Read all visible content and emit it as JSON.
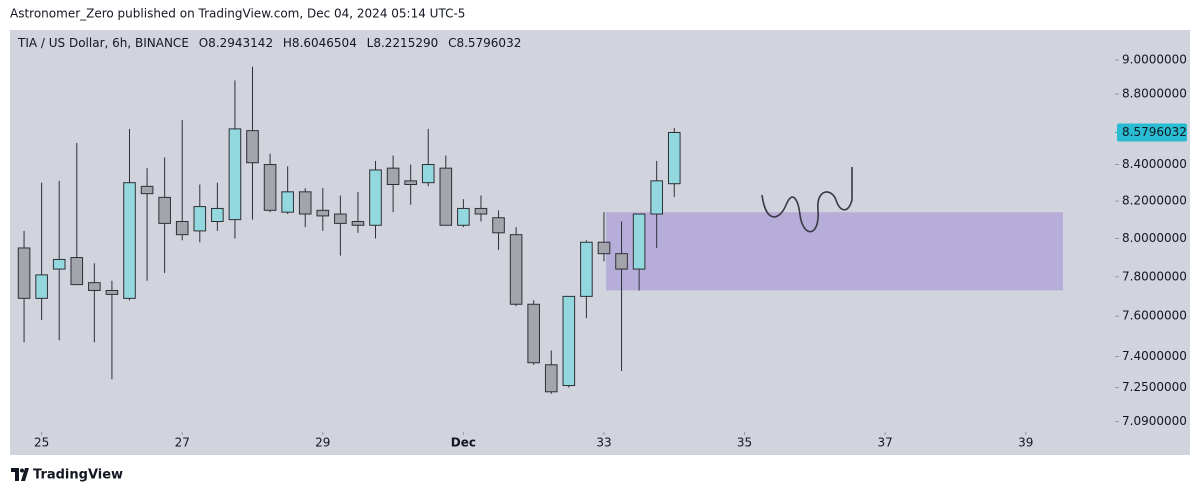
{
  "header": {
    "text": "Astronomer_Zero published on TradingView.com, Dec 04, 2024 05:14 UTC-5"
  },
  "footer": {
    "brand": "TradingView"
  },
  "chart_data": {
    "type": "candlestick",
    "symbol": "TIA / US Dollar, 6h, BINANCE",
    "ohlc_legend": [
      "O8.2943142",
      "H8.6046504",
      "L8.2215290",
      "C8.5796032"
    ],
    "x": [
      24.75,
      25,
      25.25,
      25.5,
      25.75,
      26,
      26.25,
      26.5,
      26.75,
      27,
      27.25,
      27.5,
      27.75,
      28,
      28.25,
      28.5,
      28.75,
      29,
      29.25,
      29.5,
      29.75,
      30,
      30.25,
      30.5,
      30.75,
      31,
      31.25,
      31.5,
      31.75,
      32,
      32.25,
      32.5,
      32.75,
      33,
      33.25,
      33.5,
      33.75,
      34
    ],
    "open": [
      7.95,
      7.69,
      7.84,
      7.9,
      7.77,
      7.73,
      7.69,
      8.28,
      8.22,
      8.09,
      8.04,
      8.09,
      8.1,
      8.59,
      8.4,
      8.14,
      8.25,
      8.15,
      8.13,
      8.09,
      8.07,
      8.38,
      8.31,
      8.3,
      8.38,
      8.07,
      8.16,
      8.11,
      8.02,
      7.66,
      7.36,
      7.26,
      7.7,
      7.98,
      7.92,
      7.84,
      8.13,
      8.2943142
    ],
    "high": [
      8.04,
      8.3,
      8.31,
      8.52,
      7.87,
      7.78,
      8.6,
      8.38,
      8.44,
      8.65,
      8.29,
      8.3,
      8.88,
      8.96,
      8.46,
      8.39,
      8.27,
      8.27,
      8.23,
      8.25,
      8.42,
      8.45,
      8.4,
      8.6,
      8.45,
      8.21,
      8.23,
      8.15,
      8.06,
      7.68,
      7.43,
      7.7,
      7.99,
      8.14,
      8.09,
      8.13,
      8.42,
      8.6046504
    ],
    "low": [
      7.47,
      7.58,
      7.48,
      7.76,
      7.47,
      7.29,
      7.68,
      7.78,
      7.82,
      7.99,
      7.98,
      8.04,
      8.0,
      8.1,
      8.14,
      8.13,
      8.06,
      8.04,
      7.91,
      8.03,
      8.0,
      8.14,
      8.18,
      8.28,
      8.07,
      8.06,
      8.09,
      7.94,
      7.65,
      7.36,
      7.22,
      7.25,
      7.59,
      7.88,
      7.33,
      7.73,
      7.95,
      8.221529
    ],
    "close": [
      7.69,
      7.81,
      7.89,
      7.76,
      7.73,
      7.71,
      8.3,
      8.24,
      8.08,
      8.02,
      8.17,
      8.16,
      8.6,
      8.41,
      8.15,
      8.25,
      8.13,
      8.12,
      8.08,
      8.07,
      8.37,
      8.29,
      8.29,
      8.4,
      8.07,
      8.16,
      8.13,
      8.03,
      7.66,
      7.37,
      7.23,
      7.7,
      7.98,
      7.92,
      7.84,
      8.13,
      8.31,
      8.5796032
    ],
    "up_color": "#93d8df",
    "down_color": "#a4a4ac",
    "xlim": [
      24.55,
      40.27
    ],
    "xticks": [
      25,
      27,
      29,
      {
        "value": 31,
        "label": "Dec"
      },
      33,
      35,
      37,
      39
    ],
    "ylim": [
      7.05,
      9.18
    ],
    "log_scale": true,
    "yticks": [
      {
        "value": 9,
        "label": "9.0000000"
      },
      {
        "value": 8.8,
        "label": "8.8000000"
      },
      {
        "value": 8.4,
        "label": "8.4000000"
      },
      {
        "value": 8.2,
        "label": "8.2000000"
      },
      {
        "value": 8,
        "label": "8.0000000"
      },
      {
        "value": 7.8,
        "label": "7.8000000"
      },
      {
        "value": 7.6,
        "label": "7.6000000"
      },
      {
        "value": 7.4,
        "label": "7.4000000"
      },
      {
        "value": 7.25,
        "label": "7.2500000"
      },
      {
        "value": 7.09,
        "label": "7.0900000"
      }
    ],
    "last_price": {
      "value": 8.5796032,
      "label": "8.5796032",
      "color": "#29bcd3"
    },
    "zone": {
      "x": [
        33.03,
        39.53
      ],
      "y": [
        7.73,
        8.14
      ],
      "color": "#b4a8d8"
    }
  }
}
